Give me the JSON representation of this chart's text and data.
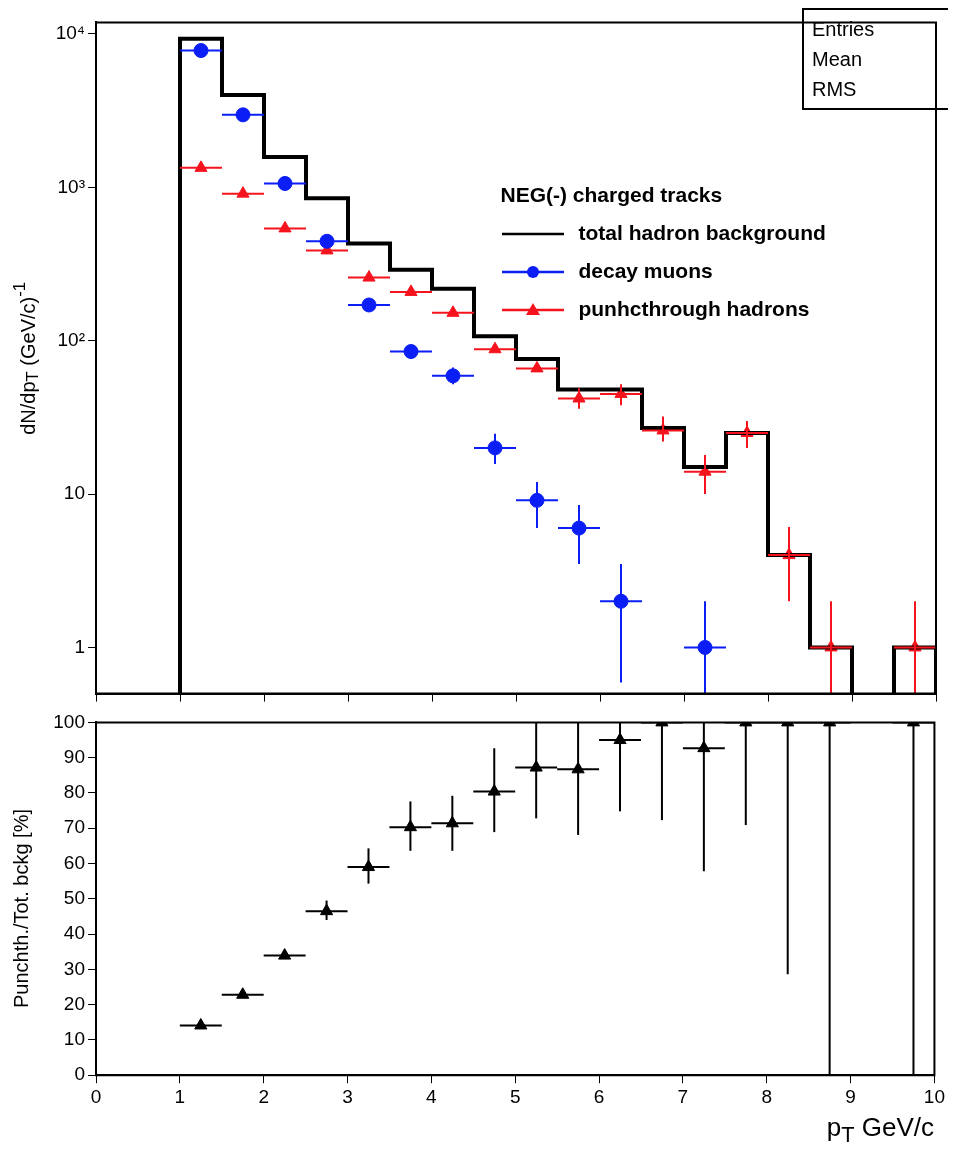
{
  "chart_data": [
    {
      "type": "scatter",
      "log": "y",
      "xlim": [
        0,
        10
      ],
      "xticks": [
        0,
        1,
        2,
        3,
        4,
        5,
        6,
        7,
        8,
        9,
        10
      ],
      "ylim": [
        0.5,
        11900
      ],
      "yticks": [
        1,
        10,
        {
          "value": 100,
          "label": "10²"
        },
        {
          "value": 1000,
          "label": "10³"
        },
        {
          "value": 10000,
          "label": "10⁴"
        }
      ],
      "ylabel": "dN/dp$_{T}$ (GeV/c)$^{-1}$",
      "tick_labels": "y",
      "legend": "top right",
      "legend_title": "NEG(-) charged tracks",
      "annotations": [
        "Entries",
        "Mean",
        "RMS"
      ],
      "x": [
        1.25,
        1.75,
        2.25,
        2.75,
        3.25,
        3.75,
        4.25,
        4.75,
        5.25,
        5.75,
        6.25,
        6.75,
        7.25,
        7.75,
        8.25,
        8.75,
        9.25,
        9.75
      ],
      "series": [
        {
          "name": "total hadron background",
          "type": "histogram",
          "color": "#000000",
          "marker": "none",
          "bins": [
            1,
            1.5,
            2,
            2.5,
            3,
            3.5,
            4,
            4.5,
            5,
            5.5,
            6,
            6.5,
            7,
            7.5,
            8,
            8.5,
            9,
            9.5,
            10
          ],
          "values": [
            9300,
            4000,
            1580,
            850,
            430,
            290,
            218,
            107,
            76,
            48,
            48,
            27,
            15,
            25,
            4,
            1,
            null,
            1
          ]
        },
        {
          "name": "decay muons",
          "color": "#0a1ef5",
          "marker": "circle",
          "values": [
            7800,
            2970,
            1060,
            445,
            171,
            85,
            59,
            20,
            9.1,
            6,
            2,
            null,
            1,
            null,
            null,
            null,
            null,
            null
          ],
          "errors": [
            null,
            null,
            null,
            null,
            null,
            null,
            [
              52,
              67
            ],
            [
              15.7,
              24.7
            ],
            [
              6,
              12
            ],
            [
              3.5,
              8.5
            ],
            [
              0.59,
              3.5
            ],
            null,
            [
              0.5,
              2
            ],
            null,
            null,
            null,
            null,
            null
          ],
          "xerrors": [
            0.25,
            0.25,
            0.25,
            0.25,
            0.25,
            0.25,
            0.25,
            0.25,
            0.25,
            0.25,
            0.25,
            null,
            0.25,
            null,
            null,
            null,
            null,
            null
          ]
        },
        {
          "name": "punhcthrough hadrons",
          "color": "#f5141e",
          "marker": "triangle",
          "values": [
            1340,
            910,
            540,
            388,
            258,
            208,
            152,
            88,
            66,
            42,
            45,
            26,
            14,
            25,
            4,
            1,
            null,
            1
          ],
          "errors": [
            null,
            null,
            null,
            null,
            null,
            null,
            null,
            null,
            null,
            [
              36,
              49
            ],
            [
              38,
              52
            ],
            [
              22,
              32
            ],
            [
              10,
              18
            ],
            [
              20,
              30
            ],
            [
              2,
              6.1
            ],
            [
              0.5,
              2
            ],
            null,
            [
              0.5,
              2
            ]
          ],
          "xerrors": [
            0.25,
            0.25,
            0.25,
            0.25,
            0.25,
            0.25,
            0.25,
            0.25,
            0.25,
            0.25,
            0.25,
            0.25,
            0.25,
            0.25,
            0.25,
            0.25,
            null,
            0.25
          ]
        }
      ]
    },
    {
      "type": "scatter",
      "xlim": [
        0,
        10
      ],
      "xticks": [
        0,
        1,
        2,
        3,
        4,
        5,
        6,
        7,
        8,
        9,
        10
      ],
      "ylim": [
        0,
        100
      ],
      "yticks": [
        0,
        10,
        20,
        30,
        40,
        50,
        60,
        70,
        80,
        90,
        100
      ],
      "ylabel": "Punchth./Tot. bckg [%]",
      "xlabel": "p$_{T}$ GeV/c",
      "x": [
        1.25,
        1.75,
        2.25,
        2.75,
        3.25,
        3.75,
        4.25,
        4.75,
        5.25,
        5.75,
        6.25,
        6.75,
        7.25,
        7.75,
        8.25,
        8.75,
        9.25,
        9.75
      ],
      "series": [
        {
          "color": "#000000",
          "marker": "triangle",
          "values": [
            14.1,
            22.8,
            33.9,
            46.5,
            59,
            70.3,
            71.4,
            80.4,
            87.2,
            86.7,
            95,
            100,
            92.7,
            100,
            100,
            100,
            null,
            100
          ],
          "errors": [
            null,
            null,
            null,
            [
              44,
              49.5
            ],
            [
              54.3,
              64.3
            ],
            [
              63.6,
              77.6
            ],
            [
              63.6,
              79.2
            ],
            [
              68.9,
              92.7
            ],
            [
              72.8,
              100
            ],
            [
              68.1,
              100
            ],
            [
              74.8,
              100
            ],
            [
              72.3,
              100
            ],
            [
              57.8,
              100
            ],
            [
              70.9,
              100
            ],
            [
              28.6,
              100
            ],
            [
              0,
              100
            ],
            null,
            [
              0,
              100
            ]
          ],
          "xerrors": [
            0.25,
            0.25,
            0.25,
            0.25,
            0.25,
            0.25,
            0.25,
            0.25,
            0.25,
            0.25,
            0.25,
            0.25,
            0.25,
            0.25,
            0.25,
            0.25,
            null,
            0.25
          ]
        }
      ]
    }
  ]
}
